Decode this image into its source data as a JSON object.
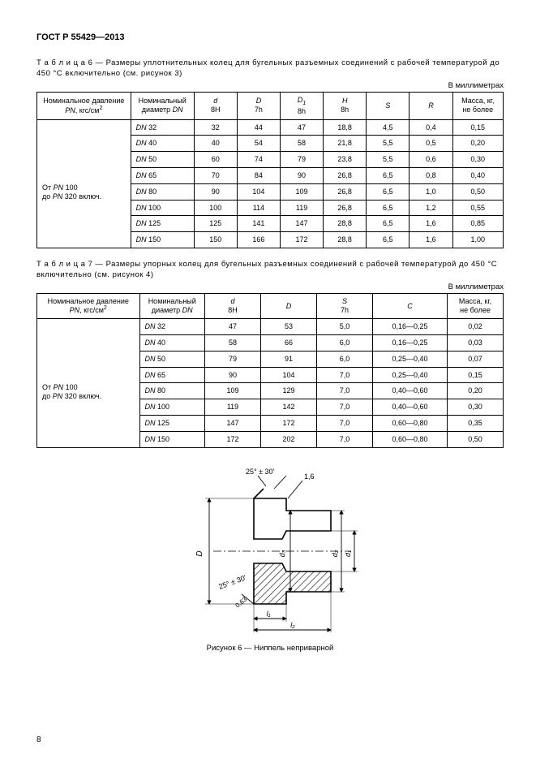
{
  "doc_header": "ГОСТ Р 55429—2013",
  "page_number": "8",
  "table6": {
    "caption_prefix": "Т а б л и ц а  6",
    "caption_text": " — Размеры уплотнительных колец для бугельных разъемных соединений с рабочей температурой до 450 °С включительно (см. рисунок 3)",
    "units": "В миллиметрах",
    "headers": {
      "c1a": "Номинальное давление",
      "c1b": "PN",
      "c1c": ", кгс/см",
      "c2a": "Номинальный",
      "c2b": "диаметр ",
      "c2c": "DN",
      "c3a": "d",
      "c3b": "8H",
      "c4a": "D",
      "c4b": "7h",
      "c5a": "D",
      "c5sub": "1",
      "c5b": "8h",
      "c6a": "H",
      "c6b": "8h",
      "c7": "S",
      "c8": "R",
      "c9a": "Масса, кг,",
      "c9b": "не более"
    },
    "press_row1": "От PN 100",
    "press_row2": "до PN 320 включ.",
    "rows": [
      {
        "dn": "DN 32",
        "d": "32",
        "D": "44",
        "D1": "47",
        "H": "18,8",
        "S": "4,5",
        "R": "0,4",
        "m": "0,15"
      },
      {
        "dn": "DN 40",
        "d": "40",
        "D": "54",
        "D1": "58",
        "H": "21,8",
        "S": "5,5",
        "R": "0,5",
        "m": "0,20"
      },
      {
        "dn": "DN 50",
        "d": "60",
        "D": "74",
        "D1": "79",
        "H": "23,8",
        "S": "5,5",
        "R": "0,6",
        "m": "0,30"
      },
      {
        "dn": "DN 65",
        "d": "70",
        "D": "84",
        "D1": "90",
        "H": "26,8",
        "S": "6,5",
        "R": "0,8",
        "m": "0,40"
      },
      {
        "dn": "DN 80",
        "d": "90",
        "D": "104",
        "D1": "109",
        "H": "26,8",
        "S": "6,5",
        "R": "1,0",
        "m": "0,50"
      },
      {
        "dn": "DN 100",
        "d": "100",
        "D": "114",
        "D1": "119",
        "H": "26,8",
        "S": "6,5",
        "R": "1,2",
        "m": "0,55"
      },
      {
        "dn": "DN 125",
        "d": "125",
        "D": "141",
        "D1": "147",
        "H": "28,8",
        "S": "6,5",
        "R": "1,6",
        "m": "0,85"
      },
      {
        "dn": "DN 150",
        "d": "150",
        "D": "166",
        "D1": "172",
        "H": "28,8",
        "S": "6,5",
        "R": "1,6",
        "m": "1,00"
      }
    ]
  },
  "table7": {
    "caption_prefix": "Т а б л и ц а  7",
    "caption_text": " — Размеры упорных колец для бугельных разъемных соединений с рабочей температурой до 450 °С включительно (см. рисунок 4)",
    "units": "В миллиметрах",
    "headers": {
      "c1a": "Номинальное давление",
      "c1b": "PN",
      "c1c": ", кгс/см",
      "c2a": "Номинальный",
      "c2b": "диаметр ",
      "c2c": "DN",
      "c3a": "d",
      "c3b": "8H",
      "c4": "D",
      "c5a": "S",
      "c5b": "7h",
      "c6": "C",
      "c7a": "Масса, кг,",
      "c7b": "не более"
    },
    "press_row1": "От PN 100",
    "press_row2": "до PN 320 включ.",
    "rows": [
      {
        "dn": "DN 32",
        "d": "47",
        "D": "53",
        "S": "5,0",
        "C": "0,16—0,25",
        "m": "0,02"
      },
      {
        "dn": "DN 40",
        "d": "58",
        "D": "66",
        "S": "6,0",
        "C": "0,16—0,25",
        "m": "0,03"
      },
      {
        "dn": "DN 50",
        "d": "79",
        "D": "91",
        "S": "6,0",
        "C": "0,25—0,40",
        "m": "0,07"
      },
      {
        "dn": "DN 65",
        "d": "90",
        "D": "104",
        "S": "7,0",
        "C": "0,25—0,40",
        "m": "0,15"
      },
      {
        "dn": "DN 80",
        "d": "109",
        "D": "129",
        "S": "7,0",
        "C": "0,40—0,60",
        "m": "0,20"
      },
      {
        "dn": "DN 100",
        "d": "119",
        "D": "142",
        "S": "7,0",
        "C": "0,40—0,60",
        "m": "0,30"
      },
      {
        "dn": "DN 125",
        "d": "147",
        "D": "172",
        "S": "7,0",
        "C": "0,60—0,80",
        "m": "0,35"
      },
      {
        "dn": "DN 150",
        "d": "172",
        "D": "202",
        "S": "7,0",
        "C": "0,60—0,80",
        "m": "0,50"
      }
    ]
  },
  "figure": {
    "caption": "Рисунок 6 — Ниппель неприварной",
    "labels": {
      "angle1": "25° ± 30'",
      "angle2": "25° ± 30'",
      "rad": "1,6",
      "dim_D": "D",
      "dim_d3": "d₃",
      "dim_d2": "d₂",
      "dim_d1": "d₁",
      "dim_l1": "l₁",
      "dim_l2": "l₂",
      "dim_r": "0,63"
    }
  }
}
